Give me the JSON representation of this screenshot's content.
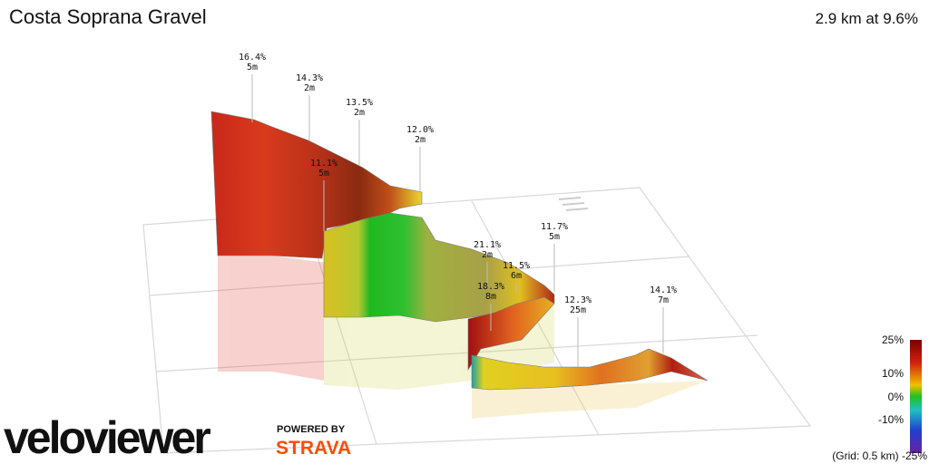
{
  "header": {
    "title": "Costa Soprana Gravel",
    "summary": "2.9 km at 9.6%"
  },
  "annotations": [
    {
      "grade": "16.4%",
      "length": "5m"
    },
    {
      "grade": "14.3%",
      "length": "2m"
    },
    {
      "grade": "13.5%",
      "length": "2m"
    },
    {
      "grade": "12.0%",
      "length": "2m"
    },
    {
      "grade": "11.1%",
      "length": "5m"
    },
    {
      "grade": "21.1%",
      "length": "2m"
    },
    {
      "grade": "11.5%",
      "length": "6m"
    },
    {
      "grade": "11.7%",
      "length": "5m"
    },
    {
      "grade": "18.3%",
      "length": "8m"
    },
    {
      "grade": "12.3%",
      "length": "25m"
    },
    {
      "grade": "14.1%",
      "length": "7m"
    }
  ],
  "scale": {
    "labels": [
      "25%",
      "10%",
      "0%",
      "-10%"
    ],
    "grid_note": "(Grid: 0.5 km) -25%"
  },
  "branding": {
    "logo": "veloviewer",
    "powered_by": "POWERED BY",
    "strava": "STRAVA"
  }
}
